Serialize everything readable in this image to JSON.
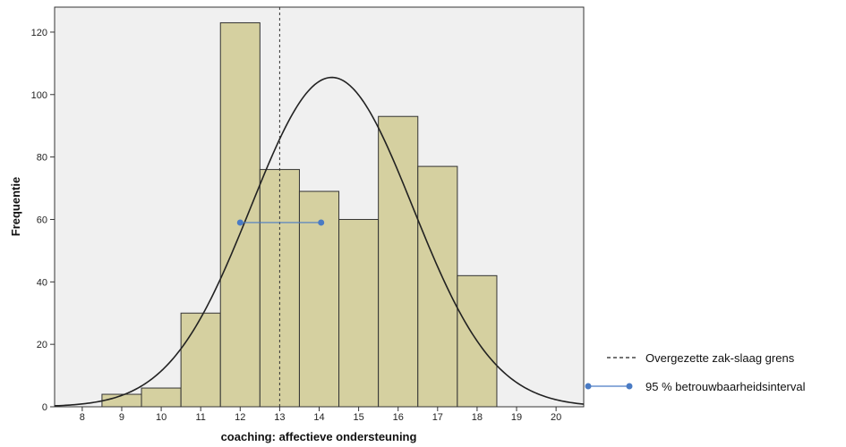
{
  "chart_data": {
    "type": "bar",
    "xlabel": "coaching: affectieve ondersteuning",
    "ylabel": "Frequentie",
    "x_ticks": [
      8,
      9,
      10,
      11,
      12,
      13,
      14,
      15,
      16,
      17,
      18,
      19,
      20
    ],
    "x_range": [
      7.3,
      20.7
    ],
    "y_ticks": [
      0,
      20,
      40,
      60,
      80,
      100,
      120
    ],
    "ylim": [
      0,
      128
    ],
    "bin_width": 1,
    "bins": [
      {
        "center": 9,
        "value": 4
      },
      {
        "center": 10,
        "value": 6
      },
      {
        "center": 11,
        "value": 30
      },
      {
        "center": 12,
        "value": 123
      },
      {
        "center": 13,
        "value": 76
      },
      {
        "center": 14,
        "value": 69
      },
      {
        "center": 15,
        "value": 60
      },
      {
        "center": 16,
        "value": 93
      },
      {
        "center": 17,
        "value": 77
      },
      {
        "center": 18,
        "value": 42
      }
    ],
    "normal_curve": {
      "mean": 14.32,
      "sd": 2.05,
      "peak": 105.5
    },
    "cutoff_line": {
      "x": 13,
      "label": "Overgezette zak-slaag grens"
    },
    "confidence_interval": {
      "low": 12.0,
      "high": 14.05,
      "y": 59,
      "label": "95 % betrouwbaarheidsinterval"
    },
    "grid": false,
    "legend_position": "bottom-right",
    "colors": {
      "bar_fill": "#d5d0a0",
      "bar_stroke": "#333333",
      "plot_background": "#f0f0f0",
      "curve": "#222222",
      "ci": "#4a7bc4"
    }
  }
}
